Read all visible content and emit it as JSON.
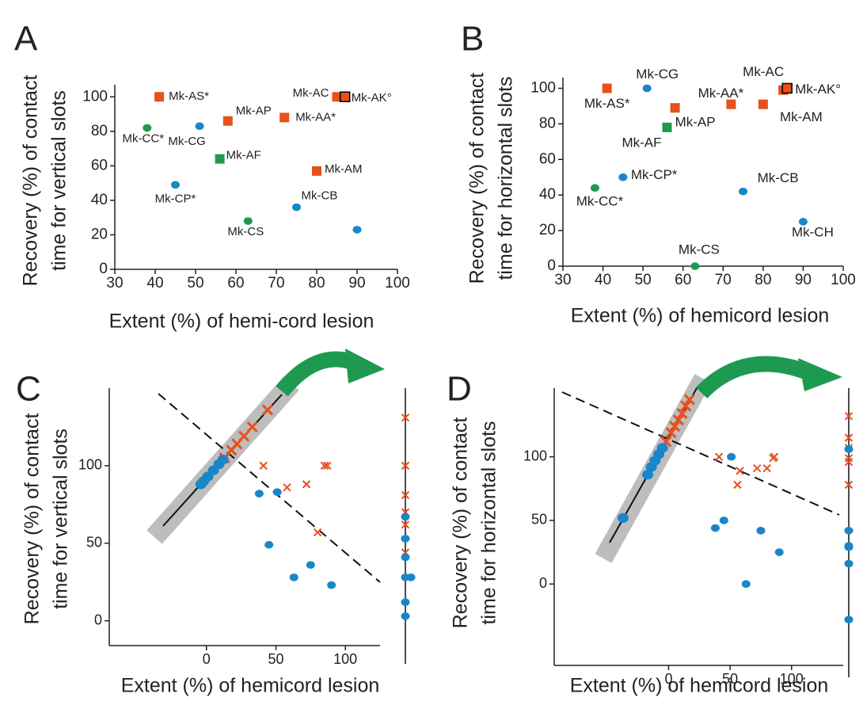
{
  "chart_data": [
    {
      "type": "scatter",
      "panel": "A",
      "ylabel": [
        "Recovery (%) of contact",
        "time for vertical slots"
      ],
      "xlabel": "Extent (%) of hemi-cord lesion",
      "xlim": [
        30,
        100
      ],
      "ylim": [
        0,
        107
      ],
      "xticks": [
        30,
        40,
        50,
        60,
        70,
        80,
        90,
        100
      ],
      "yticks": [
        0,
        20,
        40,
        60,
        80,
        100
      ],
      "series": [
        {
          "marker": "square",
          "color": "#e8501c",
          "labels": [
            "Mk-AS*",
            "Mk-AC",
            "Mk-AP",
            "Mk-AA*",
            "Mk-AM"
          ],
          "x": [
            41,
            85,
            58,
            72,
            80
          ],
          "values": [
            100,
            100,
            86,
            88,
            57
          ]
        },
        {
          "marker": "square",
          "color": "#e8501c",
          "edgecolor": "#000000",
          "labels": [
            "Mk-AK°"
          ],
          "x": [
            87
          ],
          "values": [
            100
          ]
        },
        {
          "marker": "square",
          "color": "#1e9a50",
          "labels": [
            "Mk-AF"
          ],
          "x": [
            56
          ],
          "values": [
            64
          ]
        },
        {
          "marker": "circle",
          "color": "#1e9a50",
          "labels": [
            "Mk-CC*",
            "Mk-CS"
          ],
          "x": [
            38,
            63
          ],
          "values": [
            82,
            28
          ]
        },
        {
          "marker": "circle",
          "color": "#1a86c8",
          "labels": [
            "Mk-CG",
            "Mk-CP*",
            "Mk-CB",
            null
          ],
          "x": [
            51,
            45,
            75,
            90
          ],
          "values": [
            83,
            49,
            36,
            23
          ]
        }
      ]
    },
    {
      "type": "scatter",
      "panel": "B",
      "ylabel": [
        "Recovery (%) of contact",
        "time for horizontal slots"
      ],
      "xlabel": "Extent (%) of hemicord lesion",
      "xlim": [
        30,
        100
      ],
      "ylim": [
        0,
        106
      ],
      "xticks": [
        30,
        40,
        50,
        60,
        70,
        80,
        90,
        100
      ],
      "yticks": [
        0,
        20,
        40,
        60,
        80,
        100
      ],
      "series": [
        {
          "marker": "square",
          "color": "#e8501c",
          "labels": [
            "Mk-AS*",
            "Mk-AC",
            "Mk-AA*",
            "Mk-AM",
            "Mk-AP"
          ],
          "x": [
            41,
            85,
            72,
            80,
            58
          ],
          "values": [
            100,
            99,
            91,
            91,
            89
          ]
        },
        {
          "marker": "square",
          "color": "#e8501c",
          "edgecolor": "#000000",
          "labels": [
            "Mk-AK°"
          ],
          "x": [
            86
          ],
          "values": [
            100
          ]
        },
        {
          "marker": "square",
          "color": "#1e9a50",
          "labels": [
            "Mk-AF"
          ],
          "x": [
            56
          ],
          "values": [
            78
          ]
        },
        {
          "marker": "circle",
          "color": "#1e9a50",
          "labels": [
            "Mk-CC*",
            "Mk-CS"
          ],
          "x": [
            38,
            63
          ],
          "values": [
            44,
            0
          ]
        },
        {
          "marker": "circle",
          "color": "#1a86c8",
          "labels": [
            "Mk-CG",
            "Mk-CP*",
            "Mk-CB",
            "Mk-CH"
          ],
          "x": [
            51,
            45,
            75,
            90
          ],
          "values": [
            100,
            50,
            42,
            25
          ]
        }
      ]
    },
    {
      "type": "scatter",
      "panel": "C",
      "ylabel": [
        "Recovery (%) of contact",
        "time for vertical slots"
      ],
      "xlabel": "Extent (%) of hemicord lesion",
      "xlim": [
        -70,
        125
      ],
      "ylim": [
        -16,
        150
      ],
      "xticks": [
        0,
        50,
        100
      ],
      "yticks": [
        0,
        50,
        100
      ],
      "series": [
        {
          "marker": "cross",
          "color": "#e8501c",
          "x": [
            41,
            85,
            87,
            58,
            72,
            80
          ],
          "values": [
            100,
            100,
            100,
            86,
            88,
            57
          ]
        },
        {
          "marker": "circle",
          "color": "#1a86c8",
          "x": [
            38,
            51,
            45,
            75,
            90,
            63
          ],
          "values": [
            82,
            83,
            49,
            36,
            23,
            28
          ]
        },
        {
          "marker": "cross",
          "color": "#e8501c",
          "x": [
            13,
            18,
            22,
            27,
            33,
            44
          ],
          "values": [
            105,
            110,
            114,
            119,
            125,
            136
          ]
        },
        {
          "marker": "circle",
          "color": "#1a86c8",
          "x": [
            -4,
            -2,
            1,
            5,
            9,
            12
          ],
          "values": [
            88,
            90,
            93,
            97,
            101,
            104
          ]
        },
        {
          "marker": "cross",
          "color": "#e8501c",
          "values": [
            131,
            100,
            81,
            70,
            62,
            44
          ]
        },
        {
          "marker": "circle",
          "color": "#1a86c8",
          "values": [
            67,
            53,
            41,
            28,
            28,
            12,
            3
          ]
        }
      ]
    },
    {
      "type": "scatter",
      "panel": "D",
      "ylabel": [
        "Recovery (%) of contact",
        "time for horizontal slots"
      ],
      "xlabel": "Extent (%) of hemicord lesion",
      "xlim": [
        -93,
        142
      ],
      "ylim": [
        -64,
        154
      ],
      "xticks": [
        0,
        50,
        100
      ],
      "yticks": [
        0,
        50,
        100
      ],
      "series": [
        {
          "marker": "cross",
          "color": "#e8501c",
          "x": [
            41,
            85,
            86,
            72,
            80,
            58,
            56
          ],
          "values": [
            100,
            99,
            100,
            91,
            91,
            89,
            78
          ]
        },
        {
          "marker": "circle",
          "color": "#1a86c8",
          "x": [
            51,
            45,
            38,
            75,
            90,
            63
          ],
          "values": [
            100,
            50,
            44,
            42,
            25,
            0
          ]
        },
        {
          "marker": "cross",
          "color": "#e8501c",
          "x": [
            -2,
            2,
            5,
            8,
            11,
            14,
            17
          ],
          "values": [
            112,
            119,
            124,
            129,
            134,
            140,
            145
          ]
        },
        {
          "marker": "circle",
          "color": "#1a86c8",
          "x": [
            -37,
            -17,
            -14,
            -11,
            -8,
            -5
          ],
          "values": [
            52,
            86,
            92,
            97,
            102,
            107
          ]
        },
        {
          "marker": "cross",
          "color": "#e8501c",
          "values": [
            132,
            115,
            107,
            99,
            96,
            78
          ]
        },
        {
          "marker": "circle",
          "color": "#1a86c8",
          "values": [
            106,
            42,
            30,
            29,
            16,
            -28
          ]
        }
      ]
    }
  ]
}
